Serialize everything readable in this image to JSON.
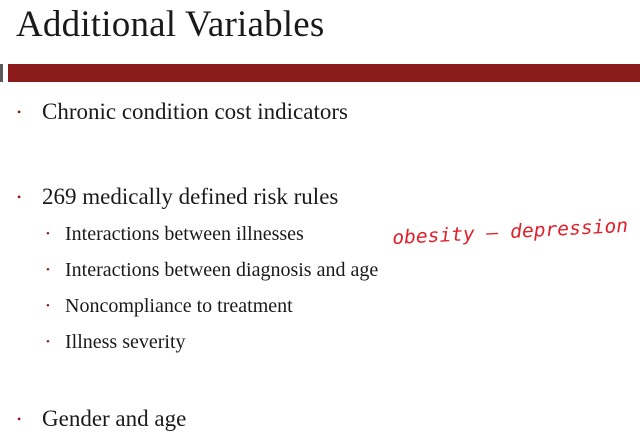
{
  "slide": {
    "title": "Additional Variables",
    "colors": {
      "accent": "#8c1b1b",
      "text": "#1a1a1a",
      "annotation": "#e0202a"
    },
    "bullets": {
      "b1": "Chronic condition cost indicators",
      "b2": "269 medically defined risk rules",
      "b2_sub1": "Interactions between illnesses",
      "b2_sub2": "Interactions between diagnosis and age",
      "b2_sub3": "Noncompliance to treatment",
      "b2_sub4": "Illness severity",
      "b3": "Gender and age"
    },
    "bullet_glyph": "•",
    "annotation": "obesity – depression"
  }
}
